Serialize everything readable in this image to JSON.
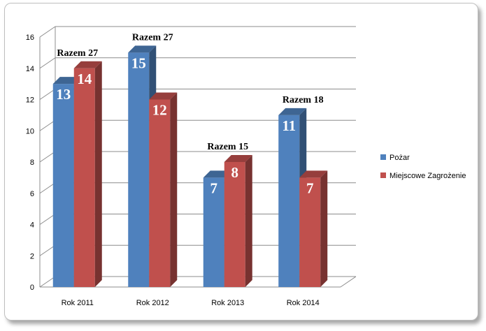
{
  "chart_data": {
    "type": "bar",
    "style": "3d-clustered-column",
    "categories": [
      "Rok 2011",
      "Rok 2012",
      "Rok 2013",
      "Rok 2014"
    ],
    "series": [
      {
        "name": "Pożar",
        "values": [
          13,
          15,
          7,
          11
        ],
        "color": "#4f81bd"
      },
      {
        "name": "Miejscowe Zagrożenie",
        "values": [
          14,
          12,
          8,
          7
        ],
        "color": "#c0504d"
      }
    ],
    "totals": [
      "Razem 27",
      "Razem 27",
      "Razem 15",
      "Razem 18"
    ],
    "ylim": [
      0,
      16
    ],
    "yticks": [
      0,
      2,
      4,
      6,
      8,
      10,
      12,
      14,
      16
    ],
    "grid": true,
    "legend": "right"
  }
}
